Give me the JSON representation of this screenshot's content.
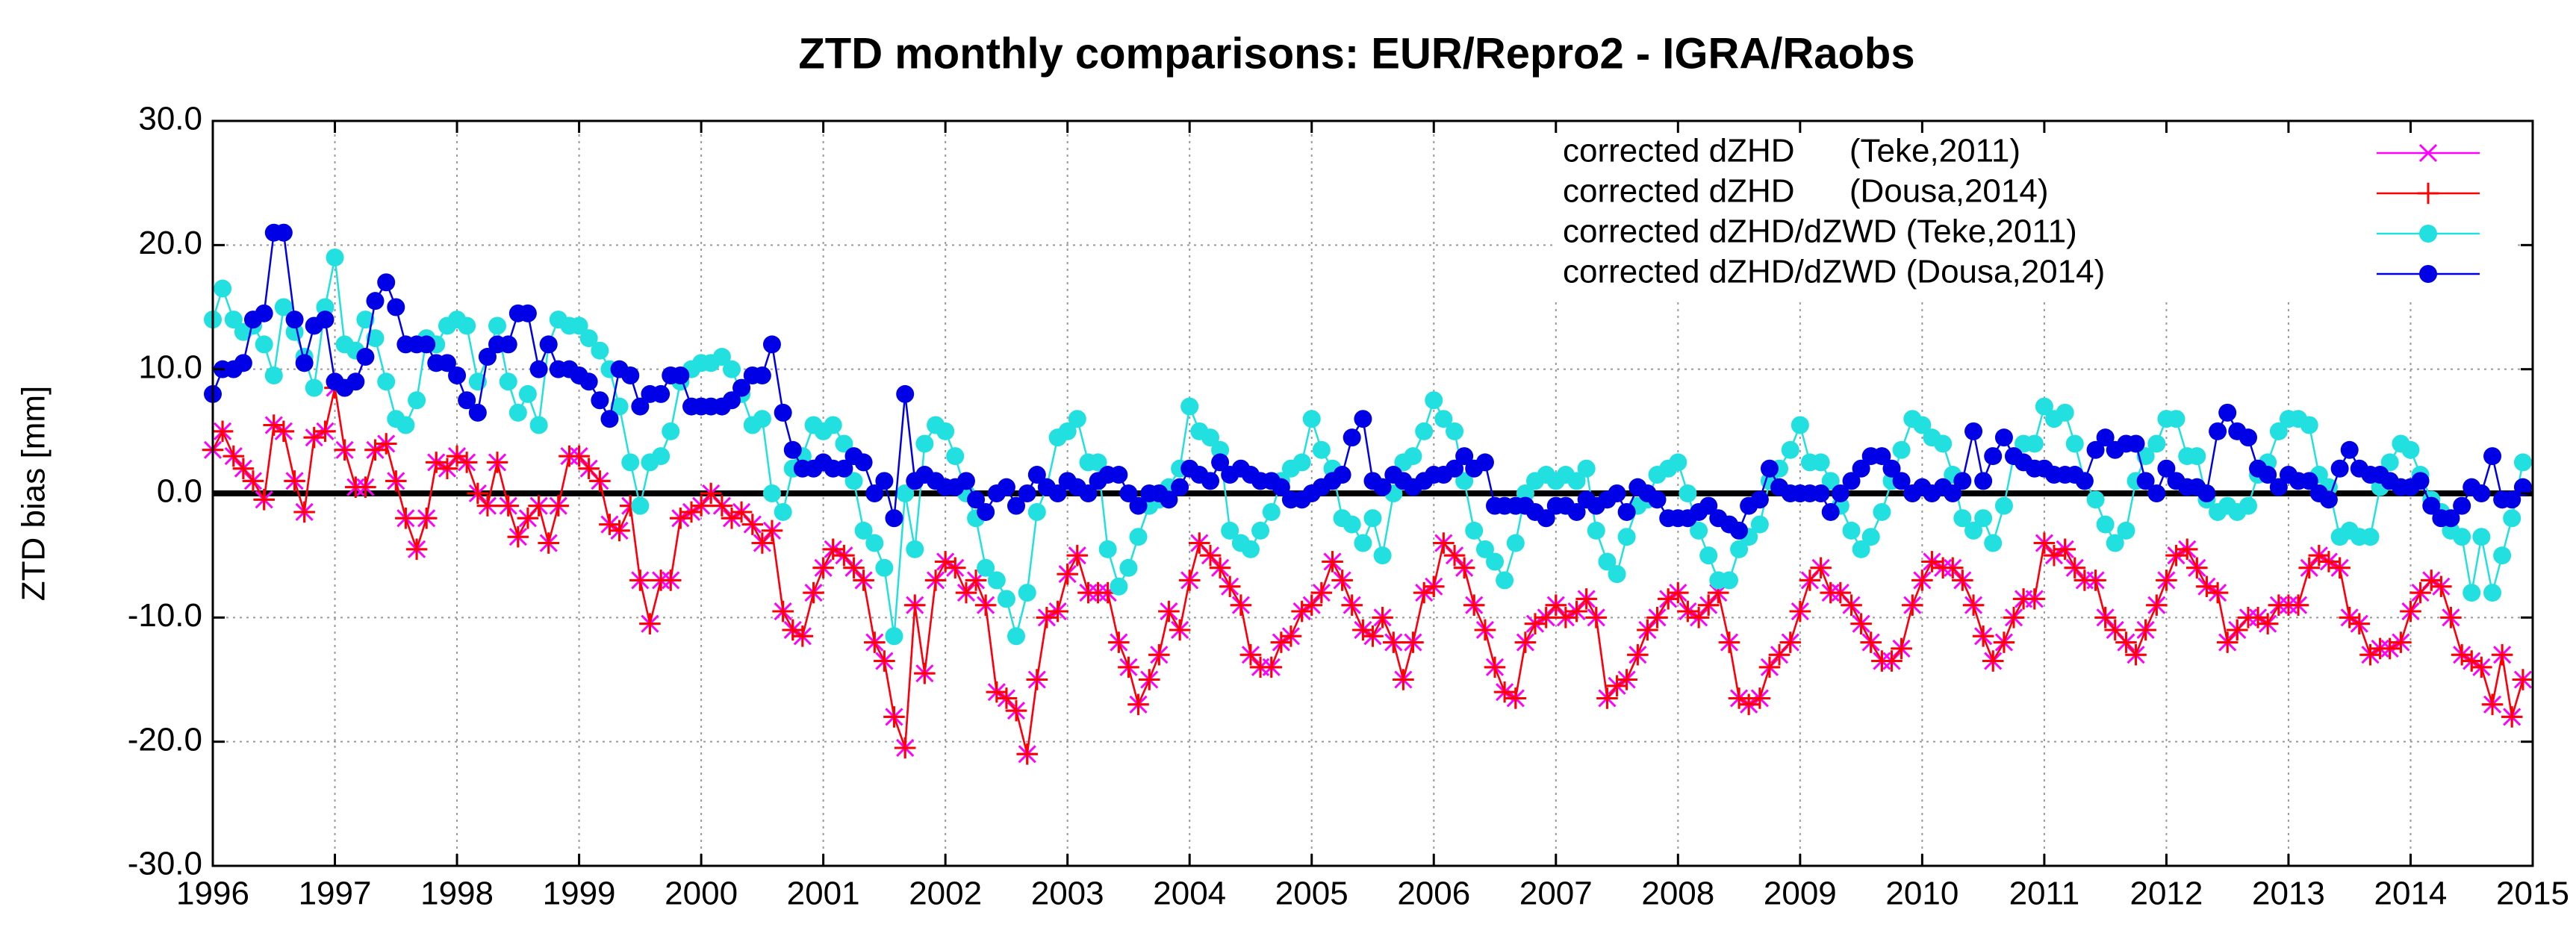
{
  "chart_data": {
    "type": "line",
    "title": "ZTD monthly comparisons: EUR/Repro2 - IGRA/Raobs",
    "y_label": "ZTD bias [mm]",
    "xlim": [
      1996,
      2015
    ],
    "xticks": [
      1996,
      1997,
      1998,
      1999,
      2000,
      2001,
      2002,
      2003,
      2004,
      2005,
      2006,
      2007,
      2008,
      2009,
      2010,
      2011,
      2012,
      2013,
      2014,
      2015
    ],
    "ylim": [
      -30,
      30
    ],
    "yticks": [
      {
        "value": -30,
        "label": "-30.0"
      },
      {
        "value": -20,
        "label": "-20.0"
      },
      {
        "value": -10,
        "label": "-10.0"
      },
      {
        "value": 0,
        "label": "0.0"
      },
      {
        "value": 10,
        "label": "10.0"
      },
      {
        "value": 20,
        "label": "20.0"
      },
      {
        "value": 30,
        "label": "30.0"
      }
    ],
    "grid": true,
    "legend": "top-right",
    "x": [
      1996,
      1996.08,
      1996.17,
      1996.25,
      1996.33,
      1996.42,
      1996.5,
      1996.58,
      1996.67,
      1996.75,
      1996.83,
      1996.92,
      1997,
      1997.08,
      1997.17,
      1997.25,
      1997.33,
      1997.42,
      1997.5,
      1997.58,
      1997.67,
      1997.75,
      1997.83,
      1997.92,
      1998,
      1998.08,
      1998.17,
      1998.25,
      1998.33,
      1998.42,
      1998.5,
      1998.58,
      1998.67,
      1998.75,
      1998.83,
      1998.92,
      1999,
      1999.08,
      1999.17,
      1999.25,
      1999.33,
      1999.42,
      1999.5,
      1999.58,
      1999.67,
      1999.75,
      1999.83,
      1999.92,
      2000,
      2000.08,
      2000.17,
      2000.25,
      2000.33,
      2000.42,
      2000.5,
      2000.58,
      2000.67,
      2000.75,
      2000.83,
      2000.92,
      2001,
      2001.08,
      2001.17,
      2001.25,
      2001.33,
      2001.42,
      2001.5,
      2001.58,
      2001.67,
      2001.75,
      2001.83,
      2001.92,
      2002,
      2002.08,
      2002.17,
      2002.25,
      2002.33,
      2002.42,
      2002.5,
      2002.58,
      2002.67,
      2002.75,
      2002.83,
      2002.92,
      2003,
      2003.08,
      2003.17,
      2003.25,
      2003.33,
      2003.42,
      2003.5,
      2003.58,
      2003.67,
      2003.75,
      2003.83,
      2003.92,
      2004,
      2004.08,
      2004.17,
      2004.25,
      2004.33,
      2004.42,
      2004.5,
      2004.58,
      2004.67,
      2004.75,
      2004.83,
      2004.92,
      2005,
      2005.08,
      2005.17,
      2005.25,
      2005.33,
      2005.42,
      2005.5,
      2005.58,
      2005.67,
      2005.75,
      2005.83,
      2005.92,
      2006,
      2006.08,
      2006.17,
      2006.25,
      2006.33,
      2006.42,
      2006.5,
      2006.58,
      2006.67,
      2006.75,
      2006.83,
      2006.92,
      2007,
      2007.08,
      2007.17,
      2007.25,
      2007.33,
      2007.42,
      2007.5,
      2007.58,
      2007.67,
      2007.75,
      2007.83,
      2007.92,
      2008,
      2008.08,
      2008.17,
      2008.25,
      2008.33,
      2008.42,
      2008.5,
      2008.58,
      2008.67,
      2008.75,
      2008.83,
      2008.92,
      2009,
      2009.08,
      2009.17,
      2009.25,
      2009.33,
      2009.42,
      2009.5,
      2009.58,
      2009.67,
      2009.75,
      2009.83,
      2009.92,
      2010,
      2010.08,
      2010.17,
      2010.25,
      2010.33,
      2010.42,
      2010.5,
      2010.58,
      2010.67,
      2010.75,
      2010.83,
      2010.92,
      2011,
      2011.08,
      2011.17,
      2011.25,
      2011.33,
      2011.42,
      2011.5,
      2011.58,
      2011.67,
      2011.75,
      2011.83,
      2011.92,
      2012,
      2012.08,
      2012.17,
      2012.25,
      2012.33,
      2012.42,
      2012.5,
      2012.58,
      2012.67,
      2012.75,
      2012.83,
      2012.92,
      2013,
      2013.08,
      2013.17,
      2013.25,
      2013.33,
      2013.42,
      2013.5,
      2013.58,
      2013.67,
      2013.75,
      2013.83,
      2013.92,
      2014,
      2014.08,
      2014.17,
      2014.25,
      2014.33,
      2014.42,
      2014.5,
      2014.58,
      2014.67,
      2014.75,
      2014.83,
      2014.92
    ],
    "series": [
      {
        "name": "corrected dZHD      (Teke,2011)",
        "color": "#ff00ff",
        "marker": "x",
        "values": [
          3.5,
          5,
          3,
          2,
          1,
          -0.5,
          5.5,
          5,
          1,
          -1.5,
          4.5,
          5,
          8.5,
          3.5,
          0.5,
          0.5,
          3.5,
          4,
          1,
          -2,
          -4.5,
          -2,
          2.5,
          2,
          3,
          2.5,
          0,
          -1,
          2.5,
          -1,
          -3.5,
          -2,
          -1,
          -4,
          -1,
          3,
          3,
          2,
          1,
          -2.5,
          -3,
          -1,
          -7,
          -10.5,
          -7,
          -7,
          -2,
          -1.5,
          -1,
          0,
          -1,
          -2,
          -1.5,
          -2.5,
          -4,
          -3,
          -9.5,
          -11,
          -11.5,
          -8,
          -6,
          -4.5,
          -5,
          -6,
          -7,
          -12,
          -13.5,
          -18,
          -20.5,
          -9,
          -14.5,
          -7,
          -5.5,
          -6,
          -8,
          -7,
          -9,
          -16,
          -16.5,
          -17.5,
          -21,
          -15,
          -10,
          -9.5,
          -6.5,
          -5,
          -8,
          -8,
          -8,
          -12,
          -14,
          -17,
          -15,
          -13,
          -9.5,
          -11,
          -7,
          -4,
          -5,
          -6,
          -7.5,
          -9,
          -13,
          -14,
          -14,
          -12,
          -11.5,
          -9.5,
          -9,
          -8,
          -5.5,
          -7,
          -9,
          -11,
          -11.5,
          -10,
          -12,
          -15,
          -12,
          -8,
          -7.5,
          -4,
          -5,
          -6,
          -9,
          -11,
          -14,
          -16,
          -16.5,
          -12,
          -10.5,
          -10,
          -9,
          -10,
          -9.5,
          -8.5,
          -10,
          -16.5,
          -15.5,
          -15,
          -13,
          -11,
          -10,
          -8.5,
          -8,
          -9.5,
          -10,
          -9,
          -8,
          -12,
          -16.5,
          -17,
          -16.5,
          -14,
          -13,
          -12,
          -9.5,
          -7,
          -6,
          -8,
          -8,
          -9,
          -10.5,
          -12,
          -13.5,
          -13.5,
          -12.5,
          -9,
          -7,
          -5.5,
          -6,
          -6,
          -7,
          -9,
          -11.5,
          -13.5,
          -12,
          -10,
          -8.5,
          -8.5,
          -4,
          -5,
          -4.5,
          -6,
          -7,
          -7,
          -10,
          -11,
          -12,
          -13,
          -11,
          -9,
          -7,
          -5,
          -4.5,
          -6,
          -7.5,
          -8,
          -12,
          -11,
          -10,
          -10,
          -10.5,
          -9,
          -9,
          -9,
          -6,
          -5,
          -5.5,
          -6,
          -10,
          -10.5,
          -13,
          -12.5,
          -12.5,
          -12,
          -9.5,
          -8,
          -7,
          -7.5,
          -10,
          -13,
          -13.5,
          -14,
          -17,
          -13,
          -18,
          -15
        ]
      },
      {
        "name": "corrected dZHD      (Dousa,2014)",
        "color": "#ff0000",
        "marker": "plus",
        "values": [
          3.5,
          5,
          3,
          2,
          1,
          -0.5,
          5.5,
          5,
          1,
          -1.5,
          4.5,
          5,
          8.5,
          3.5,
          0.5,
          0.5,
          3.5,
          4,
          1,
          -2,
          -4.5,
          -2,
          2.5,
          2,
          3,
          2.5,
          0,
          -1,
          2.5,
          -1,
          -3.5,
          -2,
          -1,
          -4,
          -1,
          3,
          3,
          2,
          1,
          -2.5,
          -3,
          -1,
          -7,
          -10.5,
          -7,
          -7,
          -2,
          -1.5,
          -1,
          0,
          -1,
          -2,
          -1.5,
          -2.5,
          -4,
          -3,
          -9.5,
          -11,
          -11.5,
          -8,
          -6,
          -4.5,
          -5,
          -6,
          -7,
          -12,
          -13.5,
          -18,
          -20.5,
          -9,
          -14.5,
          -7,
          -5.5,
          -6,
          -8,
          -7,
          -9,
          -16,
          -16.5,
          -17.5,
          -21,
          -15,
          -10,
          -9.5,
          -6.5,
          -5,
          -8,
          -8,
          -8,
          -12,
          -14,
          -17,
          -15,
          -13,
          -9.5,
          -11,
          -7,
          -4,
          -5,
          -6,
          -7.5,
          -9,
          -13,
          -14,
          -14,
          -12,
          -11.5,
          -9.5,
          -9,
          -8,
          -5.5,
          -7,
          -9,
          -11,
          -11.5,
          -10,
          -12,
          -15,
          -12,
          -8,
          -7.5,
          -4,
          -5,
          -6,
          -9,
          -11,
          -14,
          -16,
          -16.5,
          -12,
          -10.5,
          -10,
          -9,
          -10,
          -9.5,
          -8.5,
          -10,
          -16.5,
          -15.5,
          -15,
          -13,
          -11,
          -10,
          -8.5,
          -8,
          -9.5,
          -10,
          -9,
          -8,
          -12,
          -16.5,
          -17,
          -16.5,
          -14,
          -13,
          -12,
          -9.5,
          -7,
          -6,
          -8,
          -8,
          -9,
          -10.5,
          -12,
          -13.5,
          -13.5,
          -12.5,
          -9,
          -7,
          -5.5,
          -6,
          -6,
          -7,
          -9,
          -11.5,
          -13.5,
          -12,
          -10,
          -8.5,
          -8.5,
          -4,
          -5,
          -4.5,
          -6,
          -7,
          -7,
          -10,
          -11,
          -12,
          -13,
          -11,
          -9,
          -7,
          -5,
          -4.5,
          -6,
          -7.5,
          -8,
          -12,
          -11,
          -10,
          -10,
          -10.5,
          -9,
          -9,
          -9,
          -6,
          -5,
          -5.5,
          -6,
          -10,
          -10.5,
          -13,
          -12.5,
          -12.5,
          -12,
          -9.5,
          -8,
          -7,
          -7.5,
          -10,
          -13,
          -13.5,
          -14,
          -17,
          -13,
          -18,
          -15
        ]
      },
      {
        "name": "corrected dZHD/dZWD (Teke,2011)",
        "color": "#22e0e0",
        "marker": "circle",
        "values": [
          14,
          16.5,
          14,
          13,
          13.5,
          12,
          9.5,
          15,
          13,
          11,
          8.5,
          15,
          19,
          12,
          11.5,
          14,
          12.5,
          9,
          6,
          5.5,
          7.5,
          12.5,
          12,
          13.5,
          14,
          13.5,
          9,
          11,
          13.5,
          9,
          6.5,
          8,
          5.5,
          12,
          14,
          13.5,
          13.5,
          12.5,
          11.5,
          10,
          7,
          2.5,
          -1,
          2.5,
          3,
          5,
          9,
          10,
          10.5,
          10.5,
          11,
          10,
          8,
          5.5,
          6,
          0,
          -1.5,
          2,
          3,
          5.5,
          5,
          5.5,
          4,
          1,
          -3,
          -4,
          -6,
          -11.5,
          0,
          -4.5,
          4,
          5.5,
          5,
          3,
          0,
          -2,
          -6,
          -7,
          -8.5,
          -11.5,
          -8,
          -1.5,
          0.5,
          4.5,
          5,
          6,
          2.5,
          2.5,
          -4.5,
          -7.5,
          -6,
          -3.5,
          -1,
          -0.5,
          0.5,
          2,
          7,
          5,
          4.5,
          3.5,
          -3,
          -4,
          -4.5,
          -3,
          -1.5,
          1,
          2,
          2.5,
          6,
          3.5,
          2,
          -2,
          -2.5,
          -4,
          -2,
          -5,
          0,
          2.5,
          3,
          5,
          7.5,
          6,
          5,
          1,
          -3,
          -4.5,
          -5.5,
          -7,
          -4,
          0,
          1,
          1.5,
          1,
          1.5,
          1,
          2,
          -3,
          -5.5,
          -6.5,
          -3.5,
          -1,
          -0.5,
          1.5,
          2,
          2.5,
          0,
          -3,
          -5,
          -7,
          -7,
          -4.5,
          -3.5,
          -2.5,
          1,
          2,
          3.5,
          5.5,
          2.5,
          2.5,
          1,
          -1,
          -3,
          -4.5,
          -3.5,
          -1.5,
          1,
          3.5,
          6,
          5.5,
          4.5,
          4,
          1.5,
          -2,
          -3,
          -2,
          -4,
          -1,
          3,
          4,
          4,
          7,
          6,
          6.5,
          4,
          1,
          -0.5,
          -2.5,
          -4,
          -3,
          1,
          3,
          4,
          6,
          6,
          3,
          3,
          -0.5,
          -1.5,
          -1,
          -1.5,
          -1,
          1.5,
          2.5,
          5,
          6,
          6,
          5.5,
          1.5,
          0.5,
          -3.5,
          -3,
          -3.5,
          -3.5,
          0.5,
          2.5,
          4,
          3.5,
          1.5,
          -0.5,
          -1.5,
          -3,
          -3.5,
          -8,
          -3.5,
          -8,
          -5,
          -2,
          2.5
        ]
      },
      {
        "name": "corrected dZHD/dZWD (Dousa,2014)",
        "color": "#0000e6",
        "marker": "circle",
        "values": [
          8,
          10,
          10,
          10.5,
          14,
          14.5,
          21,
          21,
          14,
          10.5,
          13.5,
          14,
          9,
          8.5,
          9,
          11,
          15.5,
          17,
          15,
          12,
          12,
          12,
          10.5,
          10.5,
          9.5,
          7.5,
          6.5,
          11,
          12,
          12,
          14.5,
          14.5,
          10,
          12,
          10,
          10,
          9.5,
          9,
          7.5,
          6,
          10,
          9.5,
          7,
          8,
          8,
          9.5,
          9.5,
          7,
          7,
          7,
          7,
          7.5,
          8.5,
          9.5,
          9.5,
          12,
          6.5,
          3.5,
          2,
          2,
          2.5,
          2,
          2,
          3,
          2.5,
          0,
          1,
          -2,
          8,
          1,
          1.5,
          1,
          0.5,
          0.5,
          1,
          -0.5,
          -1.5,
          0,
          0.5,
          -1,
          0,
          1.5,
          0.5,
          0,
          1,
          0.5,
          0,
          1,
          1.5,
          1.5,
          0,
          -1,
          0,
          0,
          -0.5,
          0.5,
          2,
          1.5,
          1,
          2.5,
          1.5,
          2,
          1.5,
          1,
          1,
          0.5,
          -0.5,
          -0.5,
          0,
          0.5,
          1,
          1.5,
          4.5,
          6,
          1,
          0.5,
          1.5,
          1,
          0.5,
          1,
          1.5,
          1.5,
          2,
          3,
          2,
          2.5,
          -1,
          -1,
          -1,
          -1,
          -1.5,
          -2,
          -1,
          -1,
          -1.5,
          -0.5,
          -1,
          -0.5,
          0,
          -1.5,
          0.5,
          0,
          -0.5,
          -2,
          -2,
          -2,
          -1.5,
          -1,
          -2,
          -2.5,
          -3,
          -1,
          -0.5,
          2,
          0.5,
          0,
          0,
          0,
          0,
          -1.5,
          0,
          1,
          2,
          3,
          3,
          2,
          1,
          0,
          0.5,
          0,
          0.5,
          0,
          1,
          5,
          1,
          3,
          4.5,
          3,
          2.5,
          2,
          2,
          1.5,
          1.5,
          1.5,
          1,
          3.5,
          4.5,
          3.5,
          4,
          4,
          1,
          0,
          2,
          1,
          0.5,
          0.5,
          0,
          5,
          6.5,
          5,
          4.5,
          2,
          1.5,
          0.5,
          1.5,
          1,
          1,
          0,
          -0.5,
          2,
          3.5,
          2,
          1.5,
          1.5,
          1,
          0.5,
          0.5,
          1,
          -1,
          -2,
          -2,
          -1,
          0.5,
          0,
          3,
          -0.5,
          -0.5,
          0.5
        ]
      }
    ]
  }
}
